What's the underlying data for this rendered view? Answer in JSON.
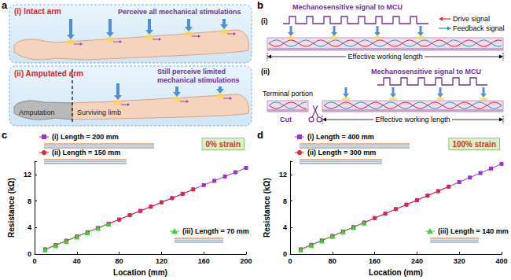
{
  "figure": {
    "a": {
      "label": "a",
      "intact": {
        "title": "(i) Intact arm",
        "caption": "Perceive all mechanical stimulations"
      },
      "amputated": {
        "title": "(ii) Amputated arm",
        "caption": "Still perceive limited mechanical stimulations",
        "amputation": "Amputation",
        "limb": "Surviving limb"
      }
    },
    "b": {
      "label": "b",
      "top": {
        "title": "(i)",
        "signal": "Mechanosensitive signal to MCU",
        "drive": "Drive signal",
        "feedback": "Feedback signal",
        "length": "Effective working length"
      },
      "bottom": {
        "title": "(ii)",
        "signal": "Mechanosensitive signal to MCU",
        "terminal": "Terminal portion",
        "cut": "Cut",
        "length": "Effective working length"
      }
    }
  },
  "chart_data": [
    {
      "label": "c",
      "type": "line",
      "annotation": "0% strain",
      "xlabel": "Location (mm)",
      "ylabel": "Resistance (kΩ)",
      "xlim": [
        0,
        200
      ],
      "xticks": [
        0,
        40,
        80,
        120,
        160,
        200
      ],
      "ylim": [
        0,
        14
      ],
      "yticks": [
        0,
        4,
        8,
        12
      ],
      "grid": false,
      "x": [
        10,
        20,
        30,
        40,
        50,
        60,
        70,
        80,
        90,
        100,
        110,
        120,
        130,
        140,
        150,
        160,
        170,
        180,
        190,
        200
      ],
      "series": [
        {
          "name": "(i) Length = 200 mm",
          "color": "#9b30d9",
          "marker": "square",
          "values": [
            0.72,
            1.38,
            2.02,
            2.66,
            3.3,
            3.95,
            4.6,
            5.22,
            5.88,
            6.52,
            7.16,
            7.82,
            8.45,
            9.1,
            9.76,
            10.4,
            11.05,
            11.7,
            12.34,
            13.0
          ]
        },
        {
          "name": "(ii) Length = 150 mm",
          "color": "#e8262f",
          "marker": "circle",
          "values": [
            0.7,
            1.35,
            2.0,
            2.65,
            3.3,
            3.93,
            4.58,
            5.2,
            5.86,
            6.5,
            7.15,
            7.8,
            8.44,
            9.08,
            9.74,
            null,
            null,
            null,
            null,
            null
          ]
        },
        {
          "name": "(iii) Length = 70 mm",
          "color": "#3fcf3f",
          "marker": "triangle",
          "values": [
            0.68,
            1.33,
            1.98,
            2.62,
            3.28,
            3.92,
            4.56,
            null,
            null,
            null,
            null,
            null,
            null,
            null,
            null,
            null,
            null,
            null,
            null,
            null
          ]
        }
      ]
    },
    {
      "label": "d",
      "type": "line",
      "annotation": "100% strain",
      "xlabel": "Location (mm)",
      "ylabel": "Resistance (kΩ)",
      "xlim": [
        0,
        400
      ],
      "xticks": [
        0,
        80,
        160,
        240,
        320,
        400
      ],
      "ylim": [
        0,
        14
      ],
      "yticks": [
        0,
        4,
        8,
        12
      ],
      "grid": false,
      "x": [
        20,
        40,
        60,
        80,
        100,
        120,
        140,
        160,
        180,
        200,
        220,
        240,
        260,
        280,
        300,
        320,
        340,
        360,
        380,
        400
      ],
      "series": [
        {
          "name": "(i) Length = 400 mm",
          "color": "#9b30d9",
          "marker": "square",
          "values": [
            0.72,
            1.4,
            2.06,
            2.74,
            3.4,
            4.08,
            4.76,
            5.44,
            6.1,
            6.8,
            7.46,
            8.14,
            8.82,
            9.5,
            10.18,
            10.86,
            11.54,
            12.22,
            12.9,
            13.6
          ]
        },
        {
          "name": "(ii) Length = 300 mm",
          "color": "#e8262f",
          "marker": "circle",
          "values": [
            0.7,
            1.38,
            2.05,
            2.72,
            3.4,
            4.06,
            4.74,
            5.42,
            6.1,
            6.78,
            7.45,
            8.12,
            8.8,
            9.48,
            10.16,
            null,
            null,
            null,
            null,
            null
          ]
        },
        {
          "name": "(iii) Length = 140 mm",
          "color": "#3fcf3f",
          "marker": "triangle",
          "values": [
            0.68,
            1.36,
            2.04,
            2.7,
            3.38,
            4.05,
            4.72,
            null,
            null,
            null,
            null,
            null,
            null,
            null,
            null,
            null,
            null,
            null,
            null,
            null
          ]
        }
      ]
    }
  ]
}
